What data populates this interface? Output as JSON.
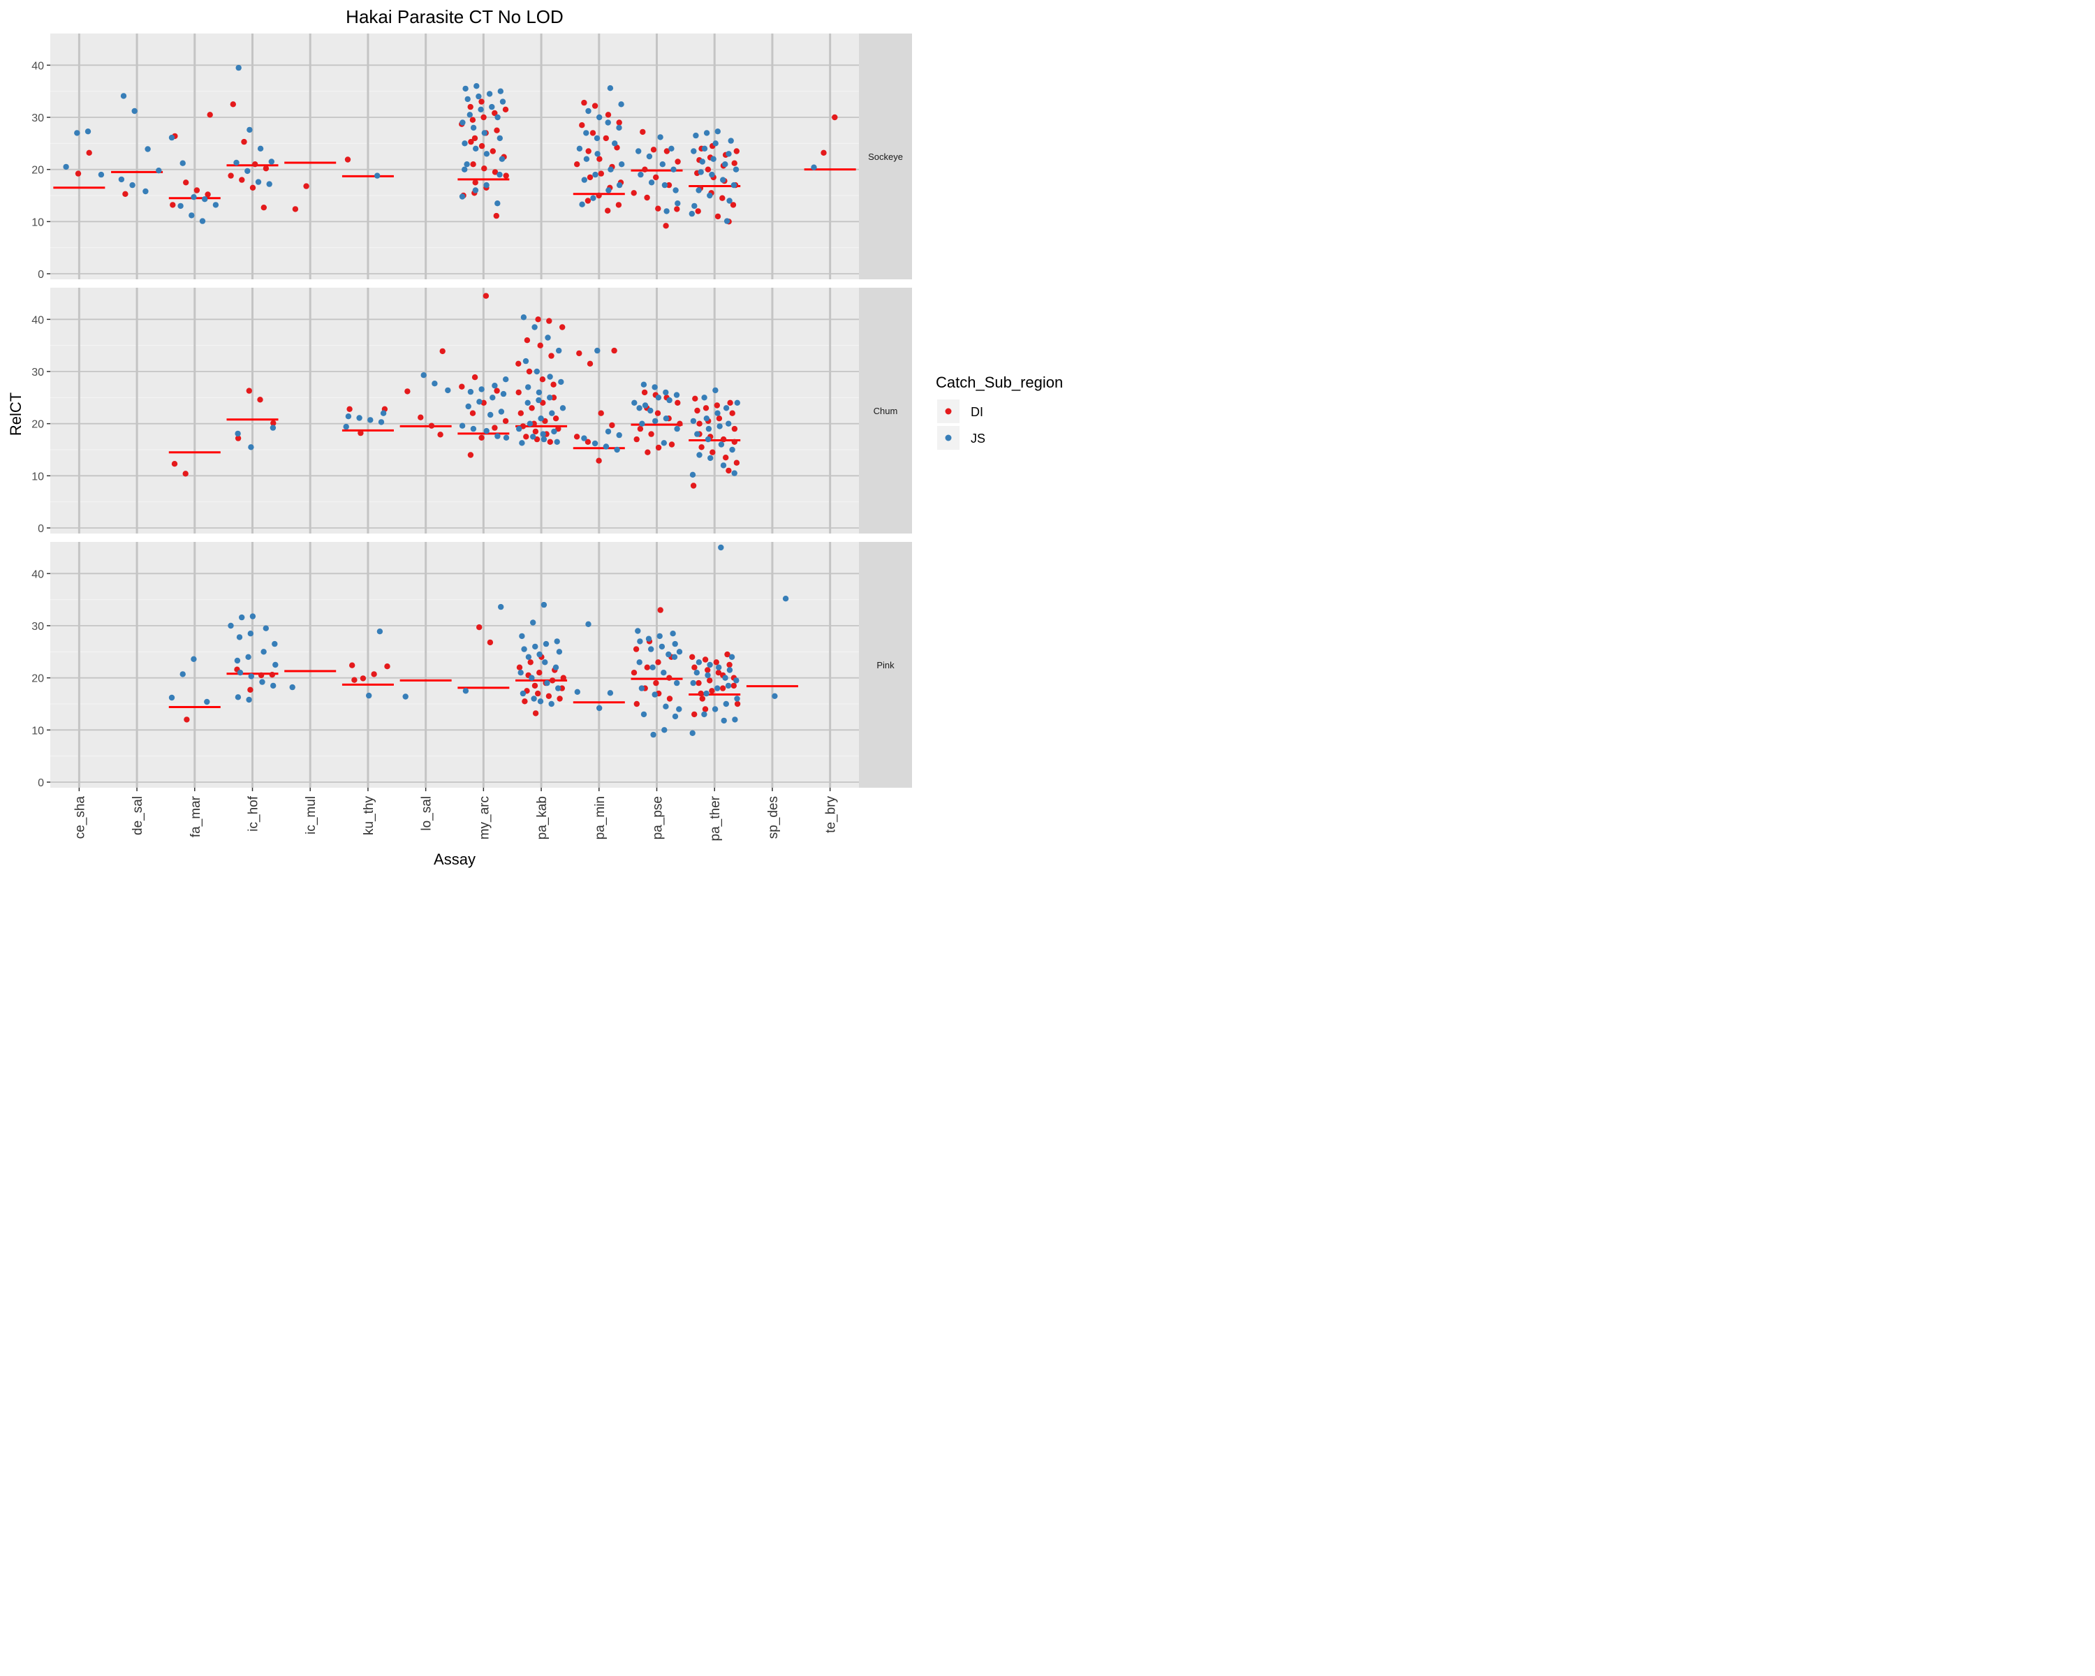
{
  "chart_data": {
    "type": "scatter",
    "title": "Hakai Parasite CT No LOD",
    "xlabel": "Assay",
    "ylabel": "RelCT",
    "categories": [
      "ce_sha",
      "de_sal",
      "fa_mar",
      "ic_hof",
      "ic_mul",
      "ku_thy",
      "lo_sal",
      "my_arc",
      "pa_kab",
      "pa_min",
      "pa_pse",
      "pa_ther",
      "sp_des",
      "te_bry"
    ],
    "ylim": [
      0,
      45
    ],
    "yticks": [
      0,
      10,
      20,
      30,
      40
    ],
    "grid": true,
    "legend": {
      "title": "Catch_Sub_region",
      "position": "right",
      "entries": [
        {
          "name": "DI",
          "color": "#E41A1C"
        },
        {
          "name": "JS",
          "color": "#377EB8"
        }
      ]
    },
    "reference_line_color": "#FF0000",
    "panels": [
      {
        "label": "Sockeye",
        "ref_lines": {
          "ce_sha": 16.5,
          "de_sal": 19.5,
          "fa_mar": 14.5,
          "ic_hof": 20.8,
          "ic_mul": 21.3,
          "ku_thy": 18.7,
          "my_arc": 18.1,
          "pa_min": 15.3,
          "pa_pse": 19.8,
          "pa_ther": 16.8,
          "te_bry": 20.0
        },
        "DI": {
          "ce_sha": [
            23.2,
            19.2
          ],
          "de_sal": [
            15.3
          ],
          "fa_mar": [
            30.5,
            26.4,
            17.5,
            16.0,
            15.2,
            13.2
          ],
          "ic_hof": [
            32.5,
            25.3,
            21.0,
            20.2,
            18.8,
            18.0,
            16.5,
            12.7
          ],
          "ic_mul": [
            16.8,
            12.4
          ],
          "ku_thy": [
            21.9
          ],
          "my_arc": [
            33.0,
            32.0,
            31.5,
            30.8,
            30.0,
            29.5,
            28.7,
            27.5,
            27.0,
            26.0,
            25.3,
            24.5,
            23.5,
            22.4,
            21.0,
            20.2,
            19.5,
            18.8,
            17.5,
            16.5,
            15.5,
            15.0,
            11.1
          ],
          "pa_min": [
            32.8,
            32.2,
            30.5,
            29.0,
            28.5,
            27.0,
            26.0,
            24.2,
            23.5,
            22.0,
            21.0,
            20.5,
            19.2,
            18.5,
            17.5,
            16.5,
            15.0,
            14.0,
            13.2,
            12.1
          ],
          "pa_pse": [
            27.2,
            23.8,
            23.5,
            21.5,
            20.0,
            18.5,
            17.0,
            15.5,
            14.6,
            12.5,
            12.4,
            9.2
          ],
          "pa_ther": [
            24.5,
            24.0,
            23.5,
            22.8,
            22.3,
            21.8,
            21.2,
            20.7,
            20.0,
            19.3,
            18.5,
            17.8,
            17.0,
            16.4,
            15.5,
            14.5,
            13.2,
            12.0,
            11.0,
            10.0
          ],
          "te_bry": [
            30.0,
            23.2
          ]
        },
        "JS": {
          "ce_sha": [
            27.3,
            27.0,
            20.5,
            19.0
          ],
          "de_sal": [
            34.1,
            31.2,
            23.9,
            19.8,
            18.1,
            17.0,
            15.8
          ],
          "fa_mar": [
            26.1,
            21.2,
            14.7,
            14.3,
            13.2,
            13.0,
            11.2,
            10.1
          ],
          "ic_hof": [
            39.5,
            27.6,
            24.0,
            21.5,
            21.3,
            19.7,
            17.6,
            17.2
          ],
          "ku_thy": [
            18.8
          ],
          "my_arc": [
            36.0,
            35.5,
            35.0,
            34.5,
            34.0,
            33.5,
            33.0,
            32.0,
            31.5,
            30.5,
            30.0,
            29.0,
            28.0,
            27.0,
            26.0,
            25.0,
            24.0,
            23.0,
            22.0,
            21.0,
            20.0,
            19.0,
            17.0,
            16.0,
            14.8,
            13.5
          ],
          "pa_min": [
            35.6,
            32.5,
            31.2,
            30.0,
            29.0,
            28.0,
            27.0,
            26.0,
            25.0,
            24.0,
            23.0,
            22.0,
            21.0,
            20.0,
            19.0,
            18.0,
            17.0,
            16.0,
            14.5,
            13.3
          ],
          "pa_pse": [
            26.2,
            24.0,
            23.5,
            22.5,
            21.0,
            20.0,
            19.0,
            17.5,
            17.0,
            16.0,
            13.5,
            12.0
          ],
          "pa_ther": [
            27.3,
            27.0,
            26.5,
            25.5,
            25.0,
            24.0,
            23.5,
            23.0,
            22.0,
            21.5,
            21.0,
            20.0,
            19.5,
            19.0,
            18.0,
            17.0,
            16.0,
            15.0,
            14.0,
            13.0,
            11.5,
            10.1
          ],
          "te_bry": [
            20.4
          ]
        }
      },
      {
        "label": "Chum",
        "ref_lines": {
          "fa_mar": 14.5,
          "ic_hof": 20.8,
          "ku_thy": 18.7,
          "lo_sal": 19.5,
          "my_arc": 18.1,
          "pa_kab": 19.5,
          "pa_min": 15.3,
          "pa_pse": 19.8,
          "pa_ther": 16.8
        },
        "DI": {
          "fa_mar": [
            12.3,
            10.4
          ],
          "ic_hof": [
            26.3,
            24.6,
            20.1,
            17.2
          ],
          "ku_thy": [
            22.8,
            22.8,
            18.2
          ],
          "lo_sal": [
            33.9,
            26.2,
            21.2,
            19.6,
            17.9
          ],
          "my_arc": [
            44.5,
            28.9,
            27.1,
            26.3,
            24.0,
            22.0,
            20.5,
            19.2,
            17.3,
            14.0
          ],
          "pa_kab": [
            40.0,
            39.7,
            38.5,
            36.0,
            35.0,
            33.0,
            31.5,
            30.0,
            28.5,
            27.5,
            26.0,
            25.0,
            24.0,
            23.0,
            22.0,
            21.0,
            20.5,
            20.0,
            19.5,
            19.0,
            18.5,
            18.0,
            17.5,
            17.0,
            16.5
          ],
          "pa_min": [
            34.0,
            33.5,
            31.5,
            22.0,
            19.7,
            17.5,
            16.5,
            12.9
          ],
          "pa_pse": [
            26.0,
            25.5,
            25.0,
            24.0,
            23.0,
            22.0,
            21.0,
            20.0,
            19.0,
            18.0,
            17.0,
            16.0,
            15.4,
            14.5
          ],
          "pa_ther": [
            24.8,
            24.0,
            23.5,
            23.0,
            22.5,
            22.0,
            21.0,
            20.5,
            20.0,
            19.0,
            18.0,
            17.5,
            17.0,
            16.5,
            15.5,
            14.5,
            13.5,
            12.5,
            11.0,
            8.1
          ]
        },
        "JS": {
          "ic_hof": [
            19.2,
            18.1,
            15.5
          ],
          "ku_thy": [
            22.0,
            21.4,
            21.1,
            20.7,
            20.3,
            19.4
          ],
          "lo_sal": [
            29.3,
            27.7,
            26.4
          ],
          "my_arc": [
            28.5,
            27.3,
            26.6,
            26.1,
            25.7,
            25.0,
            24.2,
            23.3,
            22.3,
            21.7,
            19.6,
            19.0,
            18.6,
            17.6,
            17.3
          ],
          "pa_kab": [
            40.4,
            38.5,
            36.5,
            34.0,
            32.0,
            30.0,
            29.0,
            28.0,
            27.0,
            26.0,
            25.0,
            24.5,
            24.0,
            23.0,
            22.0,
            21.0,
            20.0,
            19.0,
            18.5,
            18.0,
            17.5,
            17.0,
            16.5,
            16.3
          ],
          "pa_min": [
            34.0,
            18.5,
            17.8,
            17.2,
            16.2,
            15.6,
            15.0
          ],
          "pa_pse": [
            27.5,
            27.0,
            26.0,
            25.5,
            25.0,
            24.5,
            24.0,
            23.5,
            23.0,
            22.5,
            21.0,
            20.5,
            20.0,
            19.0,
            16.3
          ],
          "pa_ther": [
            26.4,
            25.0,
            24.0,
            23.0,
            22.0,
            21.0,
            20.5,
            20.0,
            19.5,
            19.0,
            18.0,
            17.0,
            16.0,
            15.0,
            14.0,
            13.4,
            12.0,
            10.5,
            10.2
          ]
        }
      },
      {
        "label": "Pink",
        "ref_lines": {
          "fa_mar": 14.4,
          "ic_hof": 20.8,
          "ic_mul": 21.3,
          "ku_thy": 18.7,
          "lo_sal": 19.5,
          "my_arc": 18.1,
          "pa_kab": 19.5,
          "pa_min": 15.3,
          "pa_pse": 19.8,
          "pa_ther": 16.8,
          "sp_des": 18.4
        },
        "DI": {
          "fa_mar": [
            12.0
          ],
          "ic_hof": [
            21.6,
            20.6,
            20.5,
            17.7
          ],
          "ku_thy": [
            22.4,
            22.2,
            20.7,
            19.9,
            19.6
          ],
          "my_arc": [
            29.7,
            26.8
          ],
          "pa_kab": [
            24.0,
            23.0,
            22.0,
            21.5,
            21.0,
            20.5,
            20.0,
            19.5,
            19.0,
            18.5,
            18.0,
            17.5,
            17.0,
            16.5,
            16.0,
            15.5,
            13.2
          ],
          "pa_pse": [
            33.0,
            27.0,
            25.5,
            24.0,
            23.0,
            22.0,
            21.0,
            20.0,
            19.0,
            18.0,
            17.0,
            16.0,
            15.0
          ],
          "pa_ther": [
            24.5,
            24.0,
            23.5,
            23.0,
            22.5,
            22.0,
            21.5,
            21.0,
            20.5,
            20.0,
            19.5,
            19.0,
            18.5,
            18.0,
            17.5,
            17.0,
            16.0,
            15.0,
            14.0,
            13.0
          ]
        },
        "JS": {
          "fa_mar": [
            23.6,
            20.7,
            16.2,
            15.4
          ],
          "ic_hof": [
            31.8,
            31.6,
            30.0,
            29.5,
            28.5,
            27.8,
            26.5,
            25.0,
            24.0,
            23.3,
            22.5,
            21.0,
            20.3,
            19.2,
            18.5,
            16.3,
            15.8
          ],
          "ic_mul": [
            18.2
          ],
          "ku_thy": [
            28.9,
            16.6
          ],
          "lo_sal": [
            16.4
          ],
          "my_arc": [
            33.6,
            17.5
          ],
          "pa_kab": [
            34.0,
            30.6,
            28.0,
            27.0,
            26.5,
            26.0,
            25.5,
            25.0,
            24.5,
            24.0,
            23.0,
            22.0,
            21.0,
            20.0,
            19.0,
            18.0,
            17.0,
            16.0,
            15.5,
            15.0
          ],
          "pa_min": [
            30.3,
            17.3,
            17.1,
            14.2
          ],
          "pa_pse": [
            29.0,
            28.5,
            28.0,
            27.5,
            27.0,
            26.5,
            26.0,
            25.5,
            25.0,
            24.5,
            24.0,
            23.0,
            22.0,
            21.0,
            19.0,
            18.0,
            16.8,
            14.5,
            14.0,
            13.0,
            12.6,
            10.0,
            9.1
          ],
          "pa_ther": [
            45.0,
            24.0,
            23.0,
            22.5,
            22.0,
            21.5,
            21.0,
            20.5,
            20.0,
            19.5,
            19.0,
            18.5,
            18.0,
            17.0,
            16.0,
            15.0,
            14.0,
            13.0,
            12.0,
            11.8,
            9.4
          ],
          "sp_des": [
            35.2,
            16.5
          ]
        }
      }
    ]
  }
}
